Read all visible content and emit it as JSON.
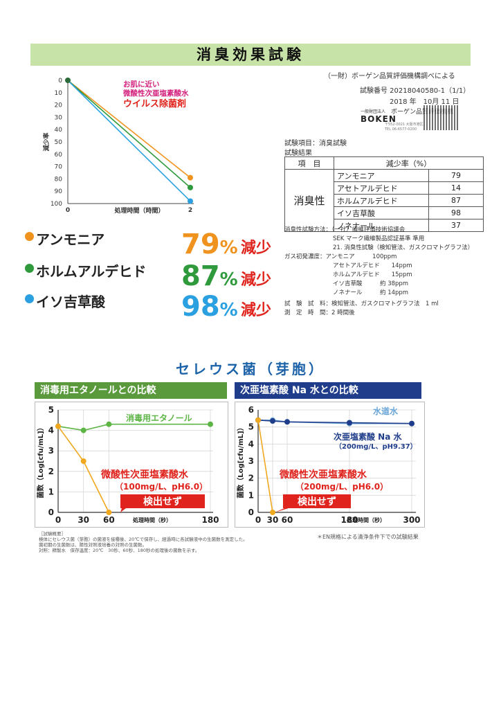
{
  "title": "消臭効果試験",
  "header_right": {
    "by": "（一財）ボーゲン品質評価機構調べによる",
    "test_no": "試験番号 20218040580-1（1/1）",
    "date": "2018 年　10月 11 日",
    "org_small": "一般財団法人",
    "org_name": "ボーゲン品質評価機構",
    "org_logo": "BOKEN",
    "org_addr": "〒552-0021 大阪市港区...",
    "org_tel": "TEL 06-6577-0200"
  },
  "deodor_chart": {
    "annotation": [
      "お肌に近い",
      "微酸性次亜塩素酸水",
      "ウイルス除菌剤"
    ],
    "ylabel": "減少率",
    "xlabel": "処理時間（時間）",
    "x_ticks": [
      "0",
      "2"
    ],
    "y_ticks": [
      "0",
      "10",
      "20",
      "30",
      "40",
      "50",
      "60",
      "70",
      "80",
      "90",
      "100"
    ]
  },
  "results": [
    {
      "name": "アンモニア",
      "pct": "79",
      "unit": "%",
      "label": "減少",
      "color": "#f0921e"
    },
    {
      "name": "ホルムアルデヒド",
      "pct": "87",
      "unit": "%",
      "label": "減少",
      "color": "#2f9a3c"
    },
    {
      "name": "イソ吉草酸",
      "pct": "98",
      "unit": "%",
      "label": "減少",
      "color": "#2aa0e0"
    }
  ],
  "test_info": {
    "item": "試験項目：消臭試験",
    "result_label": "試験結果",
    "table_head": [
      "項　目",
      "減少率（%）"
    ],
    "category": "消臭性",
    "rows": [
      {
        "name": "アンモニア",
        "value": "79"
      },
      {
        "name": "アセトアルデヒド",
        "value": "14"
      },
      {
        "name": "ホルムアルデヒド",
        "value": "87"
      },
      {
        "name": "イソ吉草酸",
        "value": "98"
      },
      {
        "name": "ノネナール",
        "value": "37"
      }
    ],
    "method_lines": [
      "消臭性試験方法：（一社）繊維評価技術協議会",
      "SEK マーク繊維製品認証基準 準用",
      "21. 消臭性試験（検知管法、ガスクロマトグラフ法）",
      "ガス初発濃度：アンモニア　　　100ppm",
      "アセトアルデヒド　　14ppm",
      "ホルムアルデヒド　　15ppm",
      "イソ吉草酸　　　約 38ppm",
      "ノネナール　　　約 14ppm",
      "試　験　試　料：検知管法、ガスクロマトグラフ法　1 ml",
      "測　定　時　間：2 時間後"
    ]
  },
  "cereus": {
    "title": "セレウス菌（芽胞）",
    "left_header": "消毒用エタノールとの比較",
    "right_header": "次亜塩素酸 Na 水との比較",
    "ylabel": "菌数（Log[cfu/mL]）",
    "xlabel": "処理時間（秒）",
    "left": {
      "x_ticks": [
        "0",
        "30",
        "60",
        "180"
      ],
      "y_ticks": [
        "0",
        "1",
        "2",
        "3",
        "4",
        "5"
      ],
      "ethanol_label": "消毒用エタノール",
      "acid_label": "微酸性次亜塩素酸水",
      "acid_sub": "（100mg/L、pH6.0）",
      "nd_label": "検出せず"
    },
    "right": {
      "x_ticks": [
        "0",
        "30",
        "60",
        "180",
        "300"
      ],
      "y_ticks": [
        "0",
        "1",
        "2",
        "3",
        "4",
        "5",
        "6"
      ],
      "tap_label": "水道水",
      "na_label": "次亜塩素酸 Na 水",
      "na_sub": "（200mg/L、pH9.37）",
      "acid_label": "微酸性次亜塩素酸水",
      "acid_sub": "（200mg/L、pH6.0）",
      "nd_label": "検出せず"
    },
    "footnote_lines": [
      "［試験概要］",
      "検体にセレウス菌（芽胞）の菌液を接種後、20℃で保存し、経過時に各試験液中の生菌数を測定した。",
      "菌初期の生菌数は、陽性対照液培養の対照の生菌数。",
      "対照：精製水　保存温度：20℃　30秒、60秒、180秒の処理後の菌数を示す。"
    ],
    "en_note": "＊EN規格による清浄条件下での試験結果"
  },
  "chart_data": [
    {
      "type": "line",
      "xlabel": "処理時間（時間）",
      "ylabel": "減少率",
      "x": [
        0,
        2
      ],
      "ylim": [
        0,
        100
      ],
      "y_inverted": true,
      "series": [
        {
          "name": "アンモニア",
          "values": [
            0,
            79
          ],
          "color": "#f0921e"
        },
        {
          "name": "ホルムアルデヒド",
          "values": [
            0,
            87
          ],
          "color": "#2f9a3c"
        },
        {
          "name": "イソ吉草酸",
          "values": [
            0,
            98
          ],
          "color": "#2aa0e0"
        }
      ]
    },
    {
      "type": "line",
      "xlabel": "処理時間（秒）",
      "ylabel": "菌数（Log[cfu/mL]）",
      "x": [
        0,
        30,
        60,
        180
      ],
      "ylim": [
        0,
        5
      ],
      "series": [
        {
          "name": "消毒用エタノール",
          "values": [
            4.2,
            4.0,
            4.3,
            4.3
          ],
          "color": "#5cb545"
        },
        {
          "name": "微酸性次亜塩素酸水",
          "values": [
            4.2,
            2.5,
            0,
            null
          ],
          "color": "#f0a81e"
        }
      ]
    },
    {
      "type": "line",
      "xlabel": "処理時間（秒）",
      "ylabel": "菌数（Log[cfu/mL]）",
      "x": [
        0,
        30,
        60,
        180,
        300
      ],
      "ylim": [
        0,
        6
      ],
      "series": [
        {
          "name": "水道水",
          "values": [
            5.4,
            5.4,
            5.3,
            5.2,
            5.2
          ],
          "color": "#6aa6d8"
        },
        {
          "name": "次亜塩素酸 Na 水",
          "values": [
            5.4,
            5.35,
            5.3,
            5.25,
            5.2
          ],
          "color": "#1f3d8a"
        },
        {
          "name": "微酸性次亜塩素酸水",
          "values": [
            5.4,
            0,
            null,
            null,
            null
          ],
          "color": "#f0a81e"
        }
      ]
    }
  ]
}
